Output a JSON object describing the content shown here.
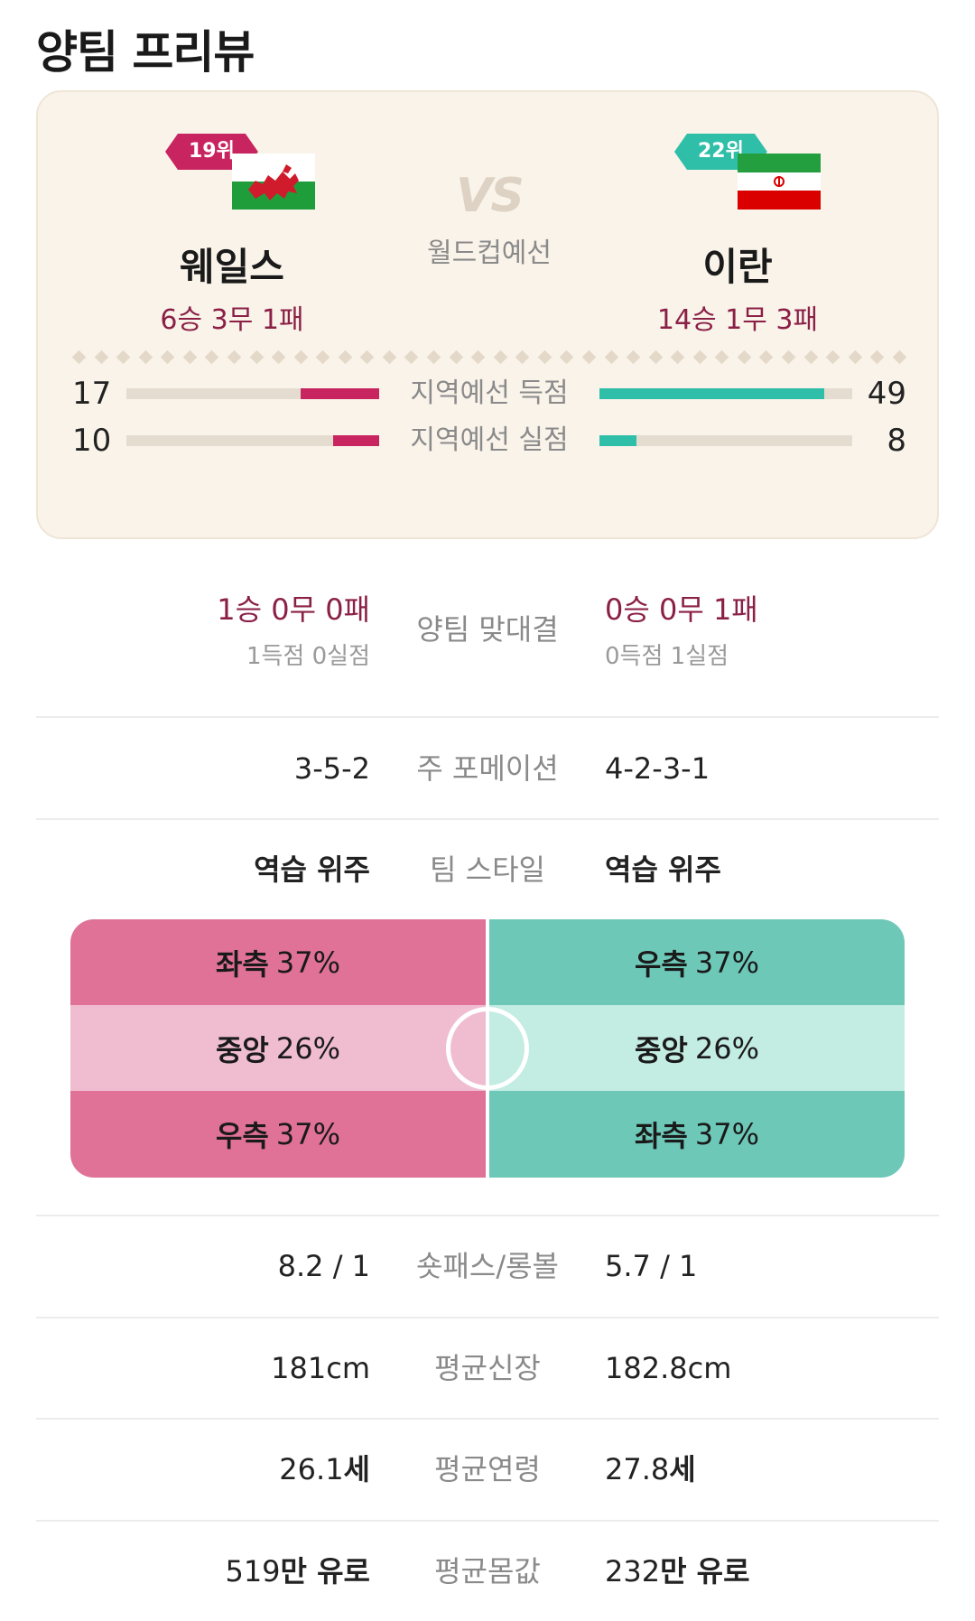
{
  "page_title": "양팀 프리뷰",
  "home": {
    "rank": "19위",
    "name": "웨일스",
    "record": "6승 3무 1패",
    "qual_goals_for": 17,
    "qual_goals_against": 10,
    "qual_goals_for_text": "17",
    "qual_goals_against_text": "10",
    "h2h_record": "1승 0무 0패",
    "h2h_goals": "1득점 0실점",
    "formation": "3-5-2",
    "style": "역습 위주",
    "attack": [
      {
        "zone": "좌측",
        "pct": "37%"
      },
      {
        "zone": "중앙",
        "pct": "26%"
      },
      {
        "zone": "우측",
        "pct": "37%"
      }
    ],
    "short_long": "8.2 / 1",
    "avg_height": "181cm",
    "avg_age_num": "26.1",
    "avg_age_unit": "세",
    "avg_value_num": "519",
    "avg_value_unit": "만 유로"
  },
  "away": {
    "rank": "22위",
    "name": "이란",
    "record": "14승 1무 3패",
    "qual_goals_for": 49,
    "qual_goals_against": 8,
    "qual_goals_for_text": "49",
    "qual_goals_against_text": "8",
    "h2h_record": "0승 0무 1패",
    "h2h_goals": "0득점 1실점",
    "formation": "4-2-3-1",
    "style": "역습 위주",
    "attack": [
      {
        "zone": "우측",
        "pct": "37%"
      },
      {
        "zone": "중앙",
        "pct": "26%"
      },
      {
        "zone": "좌측",
        "pct": "37%"
      }
    ],
    "short_long": "5.7 / 1",
    "avg_height": "182.8cm",
    "avg_age_num": "27.8",
    "avg_age_unit": "세",
    "avg_value_num": "232",
    "avg_value_unit": "만 유로"
  },
  "vs_text": "VS",
  "competition": "월드컵예선",
  "labels": {
    "qual_goals_for": "지역예선 득점",
    "qual_goals_against": "지역예선 실점",
    "h2h": "양팀 맞대결",
    "formation": "주 포메이션",
    "style": "팀 스타일",
    "short_long": "숏패스/롱볼",
    "avg_height": "평균신장",
    "avg_age": "평균연령",
    "avg_value": "평균몸값"
  },
  "bar_scale_max": 55,
  "colors": {
    "home_accent": "#c8245f",
    "away_accent": "#2fbfa8",
    "record_text": "#8b2046",
    "card_bg": "#f9f3ea"
  },
  "icons": {
    "home_flag": "wales-flag-icon",
    "away_flag": "iran-flag-icon"
  }
}
